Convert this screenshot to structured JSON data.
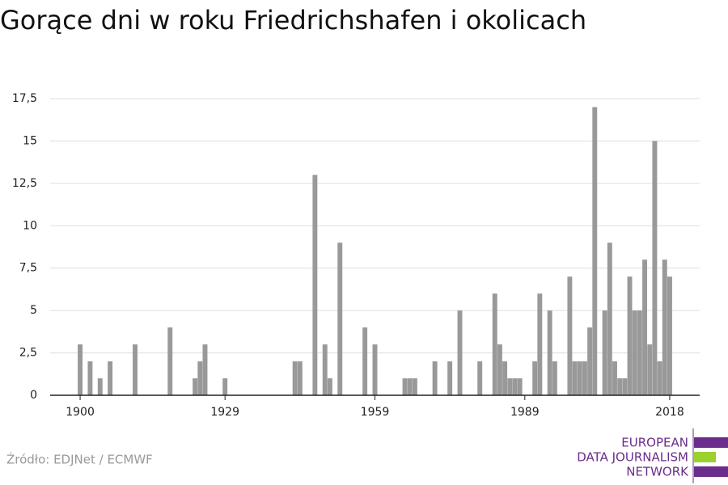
{
  "chart_data": {
    "type": "bar",
    "title": "Gorące dni w roku Friedrichshafen i okolicach",
    "x": [
      1900,
      1902,
      1904,
      1906,
      1911,
      1918,
      1923,
      1924,
      1925,
      1929,
      1943,
      1944,
      1947,
      1949,
      1950,
      1952,
      1957,
      1959,
      1965,
      1966,
      1967,
      1971,
      1974,
      1976,
      1980,
      1983,
      1984,
      1985,
      1986,
      1987,
      1988,
      1991,
      1992,
      1994,
      1995,
      1998,
      1999,
      2000,
      2001,
      2002,
      2003,
      2005,
      2006,
      2007,
      2008,
      2009,
      2010,
      2011,
      2012,
      2013,
      2014,
      2015,
      2016,
      2017,
      2018
    ],
    "values": [
      3,
      2,
      1,
      2,
      3,
      4,
      1,
      2,
      3,
      1,
      2,
      2,
      13,
      3,
      1,
      9,
      4,
      3,
      1,
      1,
      1,
      2,
      2,
      5,
      2,
      6,
      3,
      2,
      1,
      1,
      1,
      2,
      6,
      5,
      2,
      7,
      2,
      2,
      2,
      4,
      17,
      5,
      9,
      2,
      1,
      1,
      7,
      5,
      5,
      8,
      3,
      15,
      2,
      8,
      7
    ],
    "color": "#999999",
    "xlim": [
      1894,
      2024
    ],
    "xticks": [
      1900,
      1929,
      1959,
      1989,
      2018
    ],
    "ylim": [
      0,
      17.5
    ],
    "yticks": [
      0,
      {
        "value": 2.5,
        "label": "2,5"
      },
      5,
      {
        "value": 7.5,
        "label": "7,5"
      },
      10,
      {
        "value": 12.5,
        "label": "12,5"
      },
      15,
      {
        "value": 17.5,
        "label": "17,5"
      }
    ],
    "grid": true,
    "source": "Źródło: EDJNet / ECMWF",
    "logo": [
      "EUROPEAN",
      "DATA JOURNALISM",
      "NETWORK"
    ]
  }
}
